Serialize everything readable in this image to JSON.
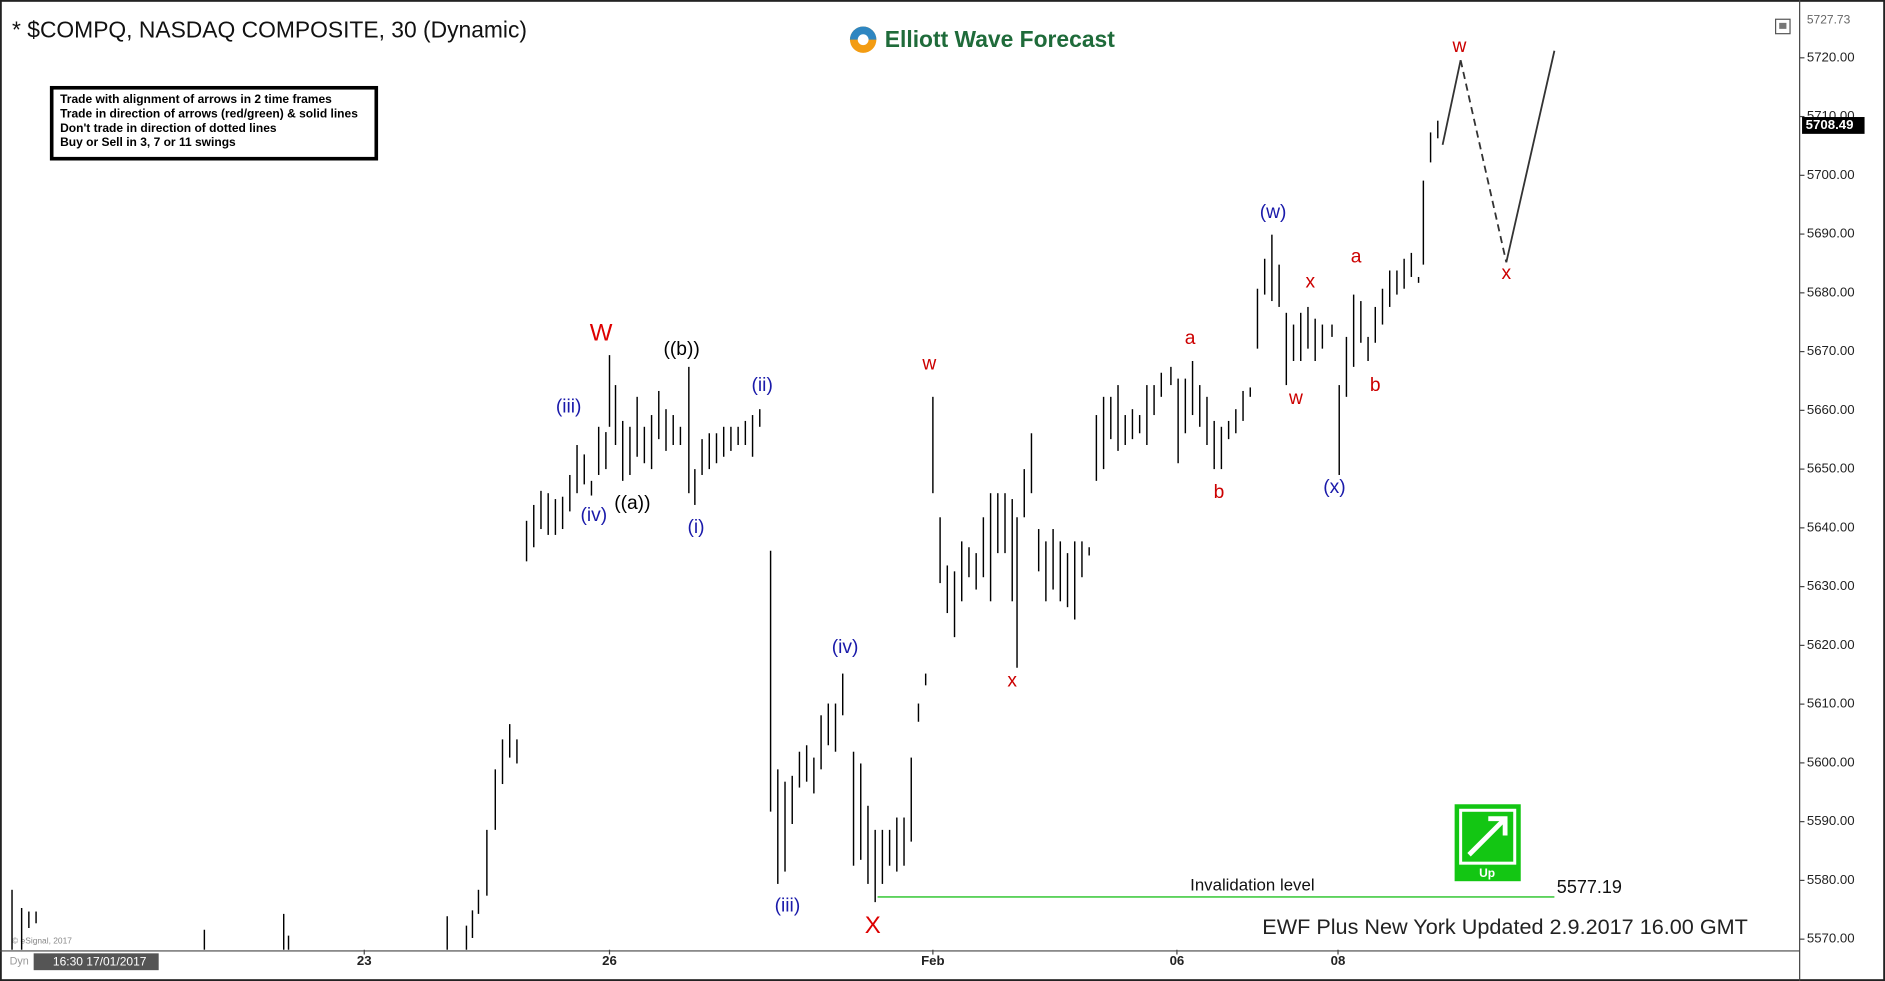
{
  "header": {
    "title": "* $COMPQ, NASDAQ COMPOSITE, 30 (Dynamic)",
    "logo": "Elliott Wave Forecast"
  },
  "rules": [
    "Trade with alignment of arrows in 2 time frames",
    "Trade in direction of arrows (red/green) & solid lines",
    "Don't trade in direction of dotted lines",
    "Buy or Sell in 3, 7 or 11 swings"
  ],
  "footer": {
    "updated": "EWF Plus New York Updated 2.9.2017 16.00 GMT",
    "copyright": "© eSignal, 2017",
    "cursor_time": "16:30 17/01/2017",
    "mode": "Dyn",
    "signal": "Up"
  },
  "chart_data": {
    "type": "range-bar",
    "ylim": [
      5568.2,
      5728.2
    ],
    "xlim": [
      0,
      1497
    ],
    "yticks": [
      {
        "value": 5570,
        "label": "5570.00"
      },
      {
        "value": 5580,
        "label": "5580.00"
      },
      {
        "value": 5590,
        "label": "5590.00"
      },
      {
        "value": 5600,
        "label": "5600.00"
      },
      {
        "value": 5610,
        "label": "5610.00"
      },
      {
        "value": 5620,
        "label": "5620.00"
      },
      {
        "value": 5630,
        "label": "5630.00"
      },
      {
        "value": 5640,
        "label": "5640.00"
      },
      {
        "value": 5650,
        "label": "5650.00"
      },
      {
        "value": 5660,
        "label": "5660.00"
      },
      {
        "value": 5670,
        "label": "5670.00"
      },
      {
        "value": 5680,
        "label": "5680.00"
      },
      {
        "value": 5690,
        "label": "5690.00"
      },
      {
        "value": 5700,
        "label": "5700.00"
      },
      {
        "value": 5710,
        "label": "5710.00"
      },
      {
        "value": 5720,
        "label": "5720.00"
      }
    ],
    "xticks": [
      {
        "value": 303,
        "label": "23"
      },
      {
        "value": 507,
        "label": "26"
      },
      {
        "value": 776,
        "label": "Feb"
      },
      {
        "value": 979,
        "label": "06"
      },
      {
        "value": 1113,
        "label": "08"
      }
    ],
    "axis_top_value": 5727.73,
    "last_price": 5708.49,
    "bars": {
      "color": "#000000",
      "x": [
        10,
        18,
        24,
        30,
        170,
        236,
        240,
        372,
        388,
        393,
        398,
        405,
        412,
        418,
        424,
        430,
        438,
        444,
        450,
        456,
        462,
        468,
        474,
        480,
        486,
        492,
        498,
        504,
        507,
        512,
        518,
        524,
        530,
        536,
        542,
        548,
        554,
        560,
        566,
        573,
        578,
        584,
        590,
        596,
        602,
        608,
        614,
        620,
        626,
        632,
        641,
        647,
        653,
        659,
        665,
        671,
        677,
        683,
        689,
        695,
        701,
        710,
        716,
        722,
        728,
        734,
        740,
        746,
        752,
        758,
        764,
        770,
        776,
        782,
        788,
        794,
        800,
        806,
        812,
        818,
        824,
        830,
        836,
        842,
        846,
        852,
        858,
        864,
        870,
        876,
        882,
        888,
        894,
        900,
        906,
        912,
        918,
        924,
        930,
        936,
        942,
        948,
        954,
        960,
        966,
        974,
        980,
        986,
        992,
        998,
        1004,
        1010,
        1016,
        1022,
        1028,
        1034,
        1040,
        1046,
        1052,
        1058,
        1064,
        1070,
        1076,
        1082,
        1088,
        1094,
        1100,
        1108,
        1114,
        1120,
        1126,
        1132,
        1138,
        1144,
        1150,
        1156,
        1162,
        1168,
        1174,
        1180,
        1184,
        1190,
        1196
      ],
      "high": [
        5578.4,
        5575.3,
        5574.7,
        5574.7,
        5571.6,
        5574.3,
        5570.6,
        5573.9,
        5572.3,
        5574.9,
        5578.4,
        5588.6,
        5598.9,
        5604.0,
        5606.6,
        5604.0,
        5641.2,
        5643.9,
        5646.3,
        5645.9,
        5644.9,
        5645.3,
        5649.0,
        5654.1,
        5652.5,
        5648.0,
        5657.2,
        5656.3,
        5669.4,
        5664.3,
        5658.2,
        5657.2,
        5662.3,
        5657.2,
        5659.2,
        5663.3,
        5660.2,
        5659.2,
        5657.2,
        5667.4,
        5650.0,
        5655.1,
        5656.1,
        5656.1,
        5657.2,
        5657.2,
        5657.2,
        5658.2,
        5659.2,
        5660.2,
        5636.1,
        5598.9,
        5596.8,
        5597.8,
        5601.9,
        5603.0,
        5600.9,
        5608.1,
        5610.1,
        5610.1,
        5615.2,
        5601.9,
        5599.9,
        5592.7,
        5588.6,
        5588.6,
        5588.6,
        5590.7,
        5590.7,
        5600.9,
        5610.1,
        5615.2,
        5662.3,
        5641.8,
        5633.6,
        5632.6,
        5637.7,
        5636.7,
        5635.7,
        5641.8,
        5645.9,
        5645.9,
        5645.9,
        5644.9,
        5641.8,
        5650.0,
        5656.1,
        5639.8,
        5637.7,
        5639.8,
        5637.7,
        5635.7,
        5637.7,
        5637.7,
        5636.7,
        5659.2,
        5662.3,
        5662.3,
        5664.3,
        5659.2,
        5660.2,
        5659.2,
        5664.3,
        5664.3,
        5666.4,
        5667.4,
        5665.4,
        5665.4,
        5668.4,
        5664.3,
        5662.3,
        5658.2,
        5657.2,
        5658.2,
        5660.2,
        5663.3,
        5663.9,
        5680.7,
        5685.8,
        5689.9,
        5684.8,
        5676.6,
        5674.6,
        5676.6,
        5677.6,
        5675.6,
        5674.6,
        5674.6,
        5664.3,
        5672.5,
        5679.7,
        5678.6,
        5672.5,
        5677.6,
        5680.7,
        5683.8,
        5683.8,
        5685.8,
        5686.8,
        5682.7,
        5699.1,
        5707.3,
        5709.3
      ],
      "low": [
        5568.2,
        5568.2,
        5571.9,
        5572.7,
        5568.2,
        5568.2,
        5568.2,
        5568.2,
        5568.2,
        5570.2,
        5574.3,
        5577.4,
        5588.6,
        5596.4,
        5600.9,
        5599.9,
        5634.3,
        5636.7,
        5639.8,
        5638.8,
        5638.8,
        5639.8,
        5642.8,
        5645.9,
        5647.4,
        5645.5,
        5649.0,
        5650.0,
        5657.2,
        5654.1,
        5648.0,
        5649.0,
        5652.1,
        5651.0,
        5650.0,
        5655.1,
        5653.1,
        5654.1,
        5654.1,
        5645.9,
        5643.9,
        5649.0,
        5650.0,
        5651.0,
        5652.1,
        5653.1,
        5654.1,
        5654.1,
        5652.1,
        5657.2,
        5591.7,
        5579.4,
        5581.5,
        5589.6,
        5595.8,
        5596.8,
        5594.8,
        5598.9,
        5603.0,
        5601.9,
        5608.1,
        5582.5,
        5583.5,
        5579.4,
        5576.3,
        5579.4,
        5582.5,
        5581.5,
        5582.5,
        5586.6,
        5607.0,
        5613.2,
        5645.9,
        5630.6,
        5625.5,
        5621.4,
        5627.5,
        5631.6,
        5629.5,
        5631.6,
        5627.5,
        5635.7,
        5635.7,
        5627.5,
        5616.2,
        5641.8,
        5645.9,
        5632.6,
        5627.5,
        5629.5,
        5627.5,
        5626.5,
        5624.4,
        5631.6,
        5635.3,
        5648.0,
        5650.0,
        5655.1,
        5653.1,
        5654.1,
        5655.1,
        5656.1,
        5654.1,
        5659.2,
        5662.3,
        5664.3,
        5651.0,
        5656.1,
        5659.2,
        5657.2,
        5654.1,
        5650.0,
        5650.0,
        5655.1,
        5656.1,
        5658.2,
        5662.3,
        5670.5,
        5679.7,
        5678.6,
        5677.6,
        5664.3,
        5668.4,
        5668.4,
        5670.5,
        5668.4,
        5670.5,
        5672.5,
        5649.0,
        5662.3,
        5667.4,
        5671.5,
        5668.4,
        5671.5,
        5674.6,
        5677.6,
        5679.7,
        5680.7,
        5682.7,
        5681.7,
        5684.8,
        5702.2,
        5706.3
      ]
    },
    "projection": {
      "color": "#333333",
      "x": [
        1200,
        1215,
        1253,
        1293
      ],
      "values": [
        5705.2,
        5719.6,
        5685.2,
        5721.2
      ],
      "segment_styles": [
        "solid",
        "dashed",
        "solid"
      ]
    },
    "invalidation": {
      "label": "Invalidation level",
      "value": 5577.19,
      "x": [
        730,
        1293
      ],
      "color": "#44cc44"
    },
    "annotations": [
      {
        "text": "W",
        "color": "#dd0000"
      },
      {
        "text": "((b))",
        "color": "#000000"
      },
      {
        "text": "(ii)",
        "color": "#1a1aaa"
      },
      {
        "text": "(iii)",
        "color": "#1a1aaa"
      },
      {
        "text": "(iv)",
        "color": "#1a1aaa"
      },
      {
        "text": "((a))",
        "color": "#000000"
      },
      {
        "text": "(i)",
        "color": "#1a1aaa"
      },
      {
        "text": "w",
        "color": "#cc0000"
      },
      {
        "text": "(iii)",
        "color": "#1a1aaa"
      },
      {
        "text": "(iv)",
        "color": "#1a1aaa"
      },
      {
        "text": "X",
        "color": "#dd0000"
      },
      {
        "text": "x",
        "color": "#cc0000"
      },
      {
        "text": "a",
        "color": "#cc0000"
      },
      {
        "text": "b",
        "color": "#cc0000"
      },
      {
        "text": "(w)",
        "color": "#1a1aaa"
      },
      {
        "text": "x",
        "color": "#cc0000"
      },
      {
        "text": "w",
        "color": "#cc0000"
      },
      {
        "text": "(x)",
        "color": "#1a1aaa"
      },
      {
        "text": "a",
        "color": "#cc0000"
      },
      {
        "text": "b",
        "color": "#cc0000"
      },
      {
        "text": "w",
        "color": "#cc0000"
      },
      {
        "text": "x",
        "color": "#cc0000"
      }
    ]
  }
}
